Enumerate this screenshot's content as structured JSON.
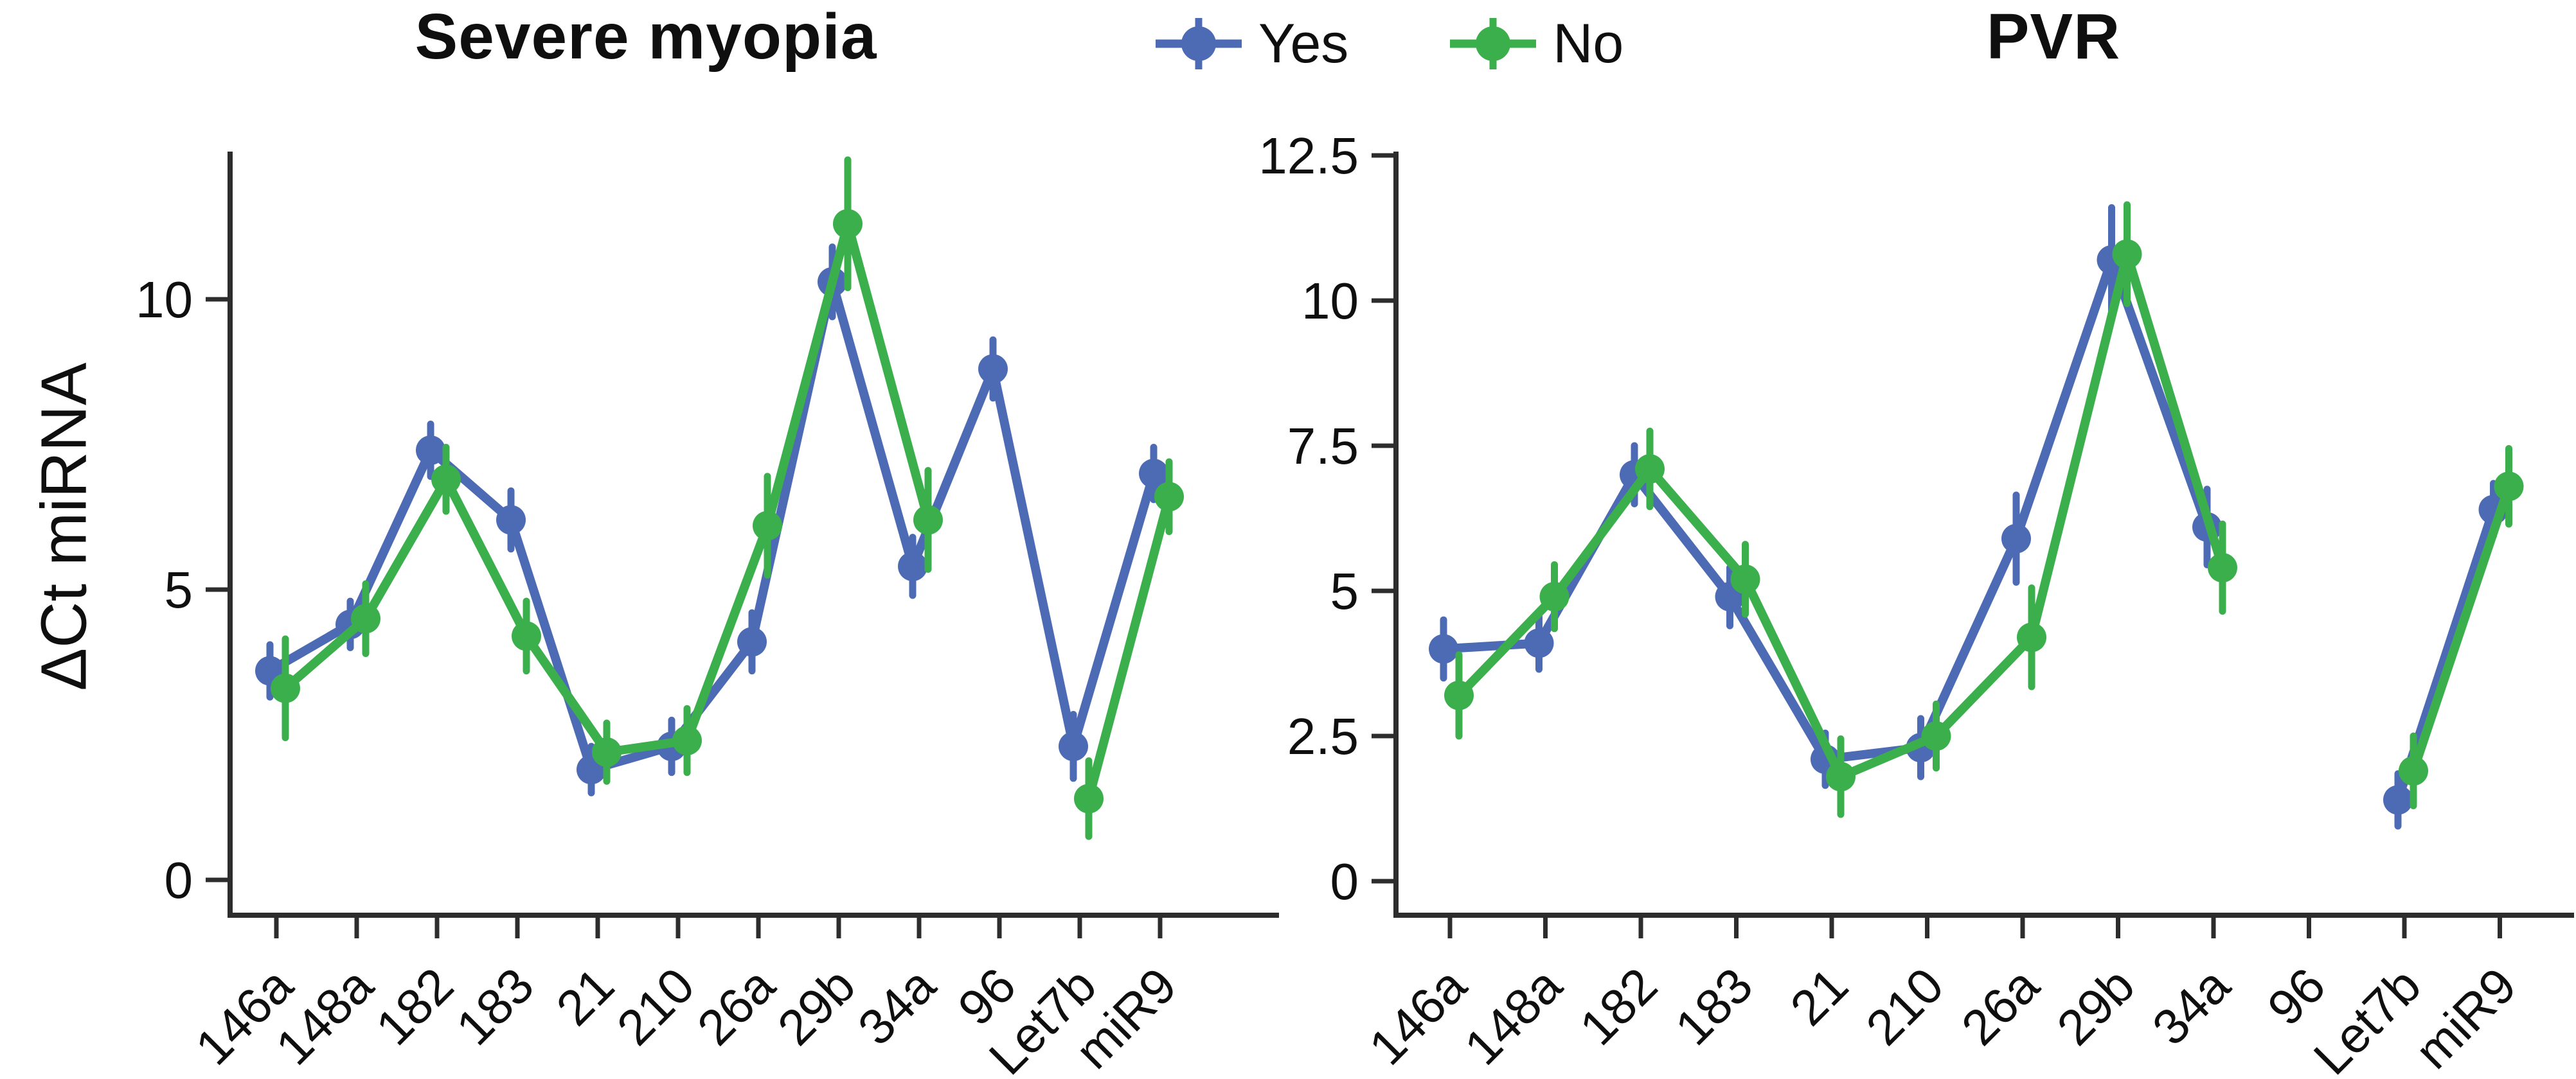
{
  "figure": {
    "y_axis_label": "ΔCt miRNA",
    "colors": {
      "yes": "#4D6BB4",
      "no": "#3CAF4D",
      "axis": "#2d2d2d",
      "text": "#0f0f0f"
    },
    "legend": [
      {
        "id": "yes",
        "label": "Yes"
      },
      {
        "id": "no",
        "label": "No"
      }
    ]
  },
  "chart_data": [
    {
      "type": "line",
      "title": "Severe myopia",
      "xlabel": "",
      "ylabel": "ΔCt miRNA",
      "grid": false,
      "legend_position": "top-center",
      "marker": "circle-with-error-bars",
      "ylim": [
        0,
        12.5
      ],
      "yticks": [
        {
          "v": 0,
          "label": "0"
        },
        {
          "v": 5,
          "label": "5"
        },
        {
          "v": 10,
          "label": "10"
        }
      ],
      "categories": [
        "146a",
        "148a",
        "182",
        "183",
        "21",
        "210",
        "26a",
        "29b",
        "34a",
        "96",
        "Let7b",
        "miR9"
      ],
      "series": [
        {
          "name": "Yes",
          "color": "yes",
          "values": [
            3.6,
            4.4,
            7.4,
            6.2,
            1.9,
            2.3,
            4.1,
            10.3,
            5.4,
            8.8,
            2.3,
            7.0
          ],
          "errors": [
            0.45,
            0.4,
            0.45,
            0.5,
            0.4,
            0.45,
            0.5,
            0.6,
            0.5,
            0.5,
            0.55,
            0.45
          ]
        },
        {
          "name": "No",
          "color": "no",
          "values": [
            3.3,
            4.5,
            6.9,
            4.2,
            2.2,
            2.4,
            6.1,
            11.3,
            6.2,
            null,
            1.4,
            6.6
          ],
          "errors": [
            0.85,
            0.6,
            0.55,
            0.6,
            0.5,
            0.55,
            0.85,
            1.1,
            0.85,
            null,
            0.65,
            0.6
          ]
        }
      ]
    },
    {
      "type": "line",
      "title": "PVR",
      "xlabel": "",
      "ylabel": "ΔCt miRNA",
      "grid": false,
      "legend_position": "top-center",
      "marker": "circle-with-error-bars",
      "ylim": [
        0,
        12.5
      ],
      "yticks": [
        {
          "v": 0,
          "label": "0"
        },
        {
          "v": 2.5,
          "label": "2.5"
        },
        {
          "v": 5,
          "label": "5"
        },
        {
          "v": 7.5,
          "label": "7.5"
        },
        {
          "v": 10,
          "label": "10"
        },
        {
          "v": 12.5,
          "label": "12.5"
        }
      ],
      "categories": [
        "146a",
        "148a",
        "182",
        "183",
        "21",
        "210",
        "26a",
        "29b",
        "34a",
        "96",
        "Let7b",
        "miR9"
      ],
      "series": [
        {
          "name": "Yes",
          "color": "yes",
          "values": [
            4.0,
            4.1,
            7.0,
            4.9,
            2.1,
            2.3,
            5.9,
            10.7,
            6.1,
            null,
            1.4,
            6.4
          ],
          "errors": [
            0.5,
            0.45,
            0.5,
            0.5,
            0.45,
            0.5,
            0.75,
            0.9,
            0.65,
            null,
            0.45,
            0.45
          ]
        },
        {
          "name": "No",
          "color": "no",
          "values": [
            3.2,
            4.9,
            7.1,
            5.2,
            1.8,
            2.5,
            4.2,
            10.8,
            5.4,
            null,
            1.9,
            6.8
          ],
          "errors": [
            0.7,
            0.55,
            0.65,
            0.6,
            0.65,
            0.55,
            0.85,
            0.85,
            0.75,
            null,
            0.6,
            0.65
          ]
        }
      ]
    }
  ]
}
